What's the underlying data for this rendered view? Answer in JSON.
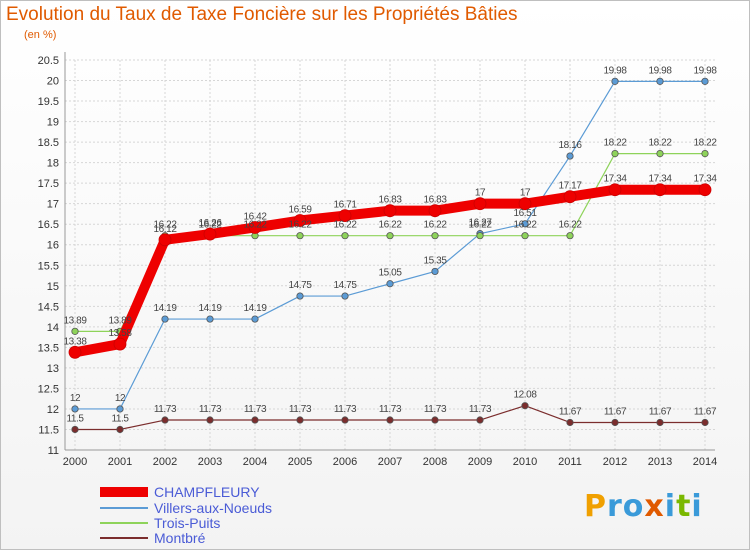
{
  "title": "Evolution du Taux de Taxe Foncière sur les Propriétés Bâties",
  "unit": "(en %)",
  "logo": {
    "letters": [
      "P",
      "r",
      "o",
      "x",
      "i",
      "t",
      "i"
    ],
    "colors": [
      "#f0a000",
      "#3a9ad9",
      "#3a9ad9",
      "#e05a00",
      "#3a9ad9",
      "#7ab800",
      "#3a9ad9"
    ]
  },
  "chart_data": {
    "type": "line",
    "x": [
      2000,
      2001,
      2002,
      2003,
      2004,
      2005,
      2006,
      2007,
      2008,
      2009,
      2010,
      2011,
      2012,
      2013,
      2014
    ],
    "ylim": [
      11,
      20.5
    ],
    "yticks": [
      "11",
      "11.5",
      "12",
      "12.5",
      "13",
      "13.5",
      "14",
      "14.5",
      "15",
      "15.5",
      "16",
      "16.5",
      "17",
      "17.5",
      "18",
      "18.5",
      "19",
      "19.5",
      "20",
      "20.5"
    ],
    "grid": true,
    "legend_position": "bottom-left",
    "series": [
      {
        "name": "CHAMPFLEURY",
        "color": "#ee0000",
        "width": 10,
        "values": [
          13.38,
          13.58,
          16.12,
          16.26,
          16.42,
          16.59,
          16.71,
          16.83,
          16.83,
          17,
          17,
          17.17,
          17.34,
          17.34,
          17.34
        ],
        "labels": [
          "13.38",
          "13.58",
          "16.12",
          "16.26",
          "16.42",
          "16.59",
          "16.71",
          "16.83",
          "16.83",
          "17",
          "17",
          "17.17",
          "17.34",
          "17.34",
          "17.34"
        ]
      },
      {
        "name": "Villers-aux-Noeuds",
        "color": "#5b9bd5",
        "width": 1.2,
        "values": [
          12,
          12,
          14.19,
          14.19,
          14.19,
          14.75,
          14.75,
          15.05,
          15.35,
          16.27,
          16.51,
          18.16,
          19.98,
          19.98,
          19.98
        ],
        "labels": [
          "12",
          "12",
          "14.19",
          "14.19",
          "14.19",
          "14.75",
          "14.75",
          "15.05",
          "15.35",
          "16.27",
          "16.51",
          "18.16",
          "19.98",
          "19.98",
          "19.98"
        ]
      },
      {
        "name": "Trois-Puits",
        "color": "#8ed35a",
        "width": 1.2,
        "values": [
          13.89,
          13.89,
          16.22,
          16.22,
          16.22,
          16.22,
          16.22,
          16.22,
          16.22,
          16.22,
          16.22,
          16.22,
          18.22,
          18.22,
          18.22
        ],
        "labels": [
          "13.89",
          "13.89",
          "16.22",
          "16.22",
          "16.22",
          "16.22",
          "16.22",
          "16.22",
          "16.22",
          "16.22",
          "16.22",
          "16.22",
          "18.22",
          "18.22",
          "18.22"
        ]
      },
      {
        "name": "Montbré",
        "color": "#7b2d2d",
        "width": 1.2,
        "values": [
          11.5,
          11.5,
          11.73,
          11.73,
          11.73,
          11.73,
          11.73,
          11.73,
          11.73,
          11.73,
          12.08,
          11.67,
          11.67,
          11.67,
          11.67
        ],
        "labels": [
          "11.5",
          "11.5",
          "11.73",
          "11.73",
          "11.73",
          "11.73",
          "11.73",
          "11.73",
          "11.73",
          "11.73",
          "12.08",
          "11.67",
          "11.67",
          "11.67",
          "11.67"
        ]
      }
    ]
  }
}
